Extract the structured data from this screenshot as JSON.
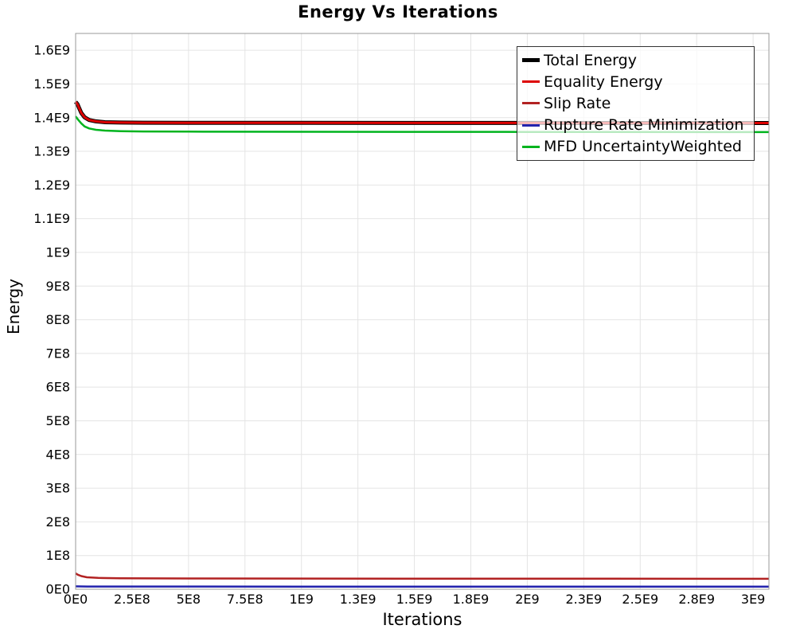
{
  "page": {
    "title": "Energy Vs Iterations"
  },
  "colors": {
    "background": "#ffffff",
    "grid": "#e4e4e4",
    "plot_border": "#989898",
    "legend_border": "#333333",
    "legend_background": "rgba(255,255,255,0.72)"
  },
  "chart_data": {
    "type": "line",
    "title": "Energy Vs Iterations",
    "xlabel": "Iterations",
    "ylabel": "Energy",
    "xlim": [
      0,
      3070000000.0
    ],
    "ylim": [
      0,
      1650000000.0
    ],
    "grid": true,
    "legend_position": "top-right",
    "x_ticks": {
      "values": [
        0,
        250000000.0,
        500000000.0,
        750000000.0,
        1000000000.0,
        1250000000.0,
        1500000000.0,
        1750000000.0,
        2000000000.0,
        2250000000.0,
        2500000000.0,
        2750000000.0,
        3000000000.0
      ],
      "labels": [
        "0E0",
        "2.5E8",
        "5E8",
        "7.5E8",
        "1E9",
        "1.3E9",
        "1.5E9",
        "1.8E9",
        "2E9",
        "2.3E9",
        "2.5E9",
        "2.8E9",
        "3E9"
      ]
    },
    "y_ticks": {
      "values": [
        0,
        100000000.0,
        200000000.0,
        300000000.0,
        400000000.0,
        500000000.0,
        600000000.0,
        700000000.0,
        800000000.0,
        900000000.0,
        1000000000.0,
        1100000000.0,
        1200000000.0,
        1300000000.0,
        1400000000.0,
        1500000000.0,
        1600000000.0
      ],
      "labels": [
        "0E0",
        "1E8",
        "2E8",
        "3E8",
        "4E8",
        "5E8",
        "6E8",
        "7E8",
        "8E8",
        "9E8",
        "1E9",
        "1.1E9",
        "1.2E9",
        "1.3E9",
        "1.4E9",
        "1.5E9",
        "1.6E9"
      ]
    },
    "series": [
      {
        "name": "Total Energy",
        "color": "#000000",
        "line_width": 5,
        "points": [
          [
            0,
            1447000000.0
          ],
          [
            8000000.0,
            1440000000.0
          ],
          [
            16000000.0,
            1428000000.0
          ],
          [
            25000000.0,
            1414000000.0
          ],
          [
            40000000.0,
            1401000000.0
          ],
          [
            60000000.0,
            1393000000.0
          ],
          [
            90000000.0,
            1389000000.0
          ],
          [
            130000000.0,
            1386500000.0
          ],
          [
            200000000.0,
            1385500000.0
          ],
          [
            300000000.0,
            1385000000.0
          ],
          [
            500000000.0,
            1384800000.0
          ],
          [
            1000000000.0,
            1384500000.0
          ],
          [
            1500000000.0,
            1384300000.0
          ],
          [
            2000000000.0,
            1384200000.0
          ],
          [
            2500000000.0,
            1384100000.0
          ],
          [
            3070000000.0,
            1384000000.0
          ]
        ]
      },
      {
        "name": "Equality Energy",
        "color": "#dd0000",
        "line_width": 3,
        "points": [
          [
            0,
            1447000000.0
          ],
          [
            8000000.0,
            1440000000.0
          ],
          [
            16000000.0,
            1428000000.0
          ],
          [
            25000000.0,
            1414000000.0
          ],
          [
            40000000.0,
            1401000000.0
          ],
          [
            60000000.0,
            1393000000.0
          ],
          [
            90000000.0,
            1389000000.0
          ],
          [
            130000000.0,
            1386500000.0
          ],
          [
            200000000.0,
            1385500000.0
          ],
          [
            300000000.0,
            1385000000.0
          ],
          [
            500000000.0,
            1384800000.0
          ],
          [
            1000000000.0,
            1384500000.0
          ],
          [
            1500000000.0,
            1384300000.0
          ],
          [
            2000000000.0,
            1384200000.0
          ],
          [
            2500000000.0,
            1384100000.0
          ],
          [
            3070000000.0,
            1384000000.0
          ]
        ]
      },
      {
        "name": "Slip Rate",
        "color": "#b22222",
        "line_width": 2.5,
        "points": [
          [
            0,
            47000000.0
          ],
          [
            10000000.0,
            43000000.0
          ],
          [
            25000000.0,
            39000000.0
          ],
          [
            50000000.0,
            35500000.0
          ],
          [
            100000000.0,
            33500000.0
          ],
          [
            200000000.0,
            32500000.0
          ],
          [
            500000000.0,
            32000000.0
          ],
          [
            1500000000.0,
            31500000.0
          ],
          [
            3070000000.0,
            31000000.0
          ]
        ]
      },
      {
        "name": "Rupture Rate Minimization",
        "color": "#2323ad",
        "line_width": 2.5,
        "points": [
          [
            0,
            8500000.0
          ],
          [
            50000000.0,
            8000000.0
          ],
          [
            1000000000.0,
            7700000.0
          ],
          [
            3070000000.0,
            7500000.0
          ]
        ]
      },
      {
        "name": "MFD UncertaintyWeighted",
        "color": "#00b41e",
        "line_width": 2.5,
        "points": [
          [
            0,
            1404000000.0
          ],
          [
            10000000.0,
            1395000000.0
          ],
          [
            25000000.0,
            1383000000.0
          ],
          [
            40000000.0,
            1374000000.0
          ],
          [
            60000000.0,
            1368000000.0
          ],
          [
            90000000.0,
            1364000000.0
          ],
          [
            130000000.0,
            1361500000.0
          ],
          [
            200000000.0,
            1360000000.0
          ],
          [
            300000000.0,
            1359000000.0
          ],
          [
            500000000.0,
            1358500000.0
          ],
          [
            1000000000.0,
            1358000000.0
          ],
          [
            2000000000.0,
            1357500000.0
          ],
          [
            3070000000.0,
            1357000000.0
          ]
        ]
      }
    ]
  }
}
